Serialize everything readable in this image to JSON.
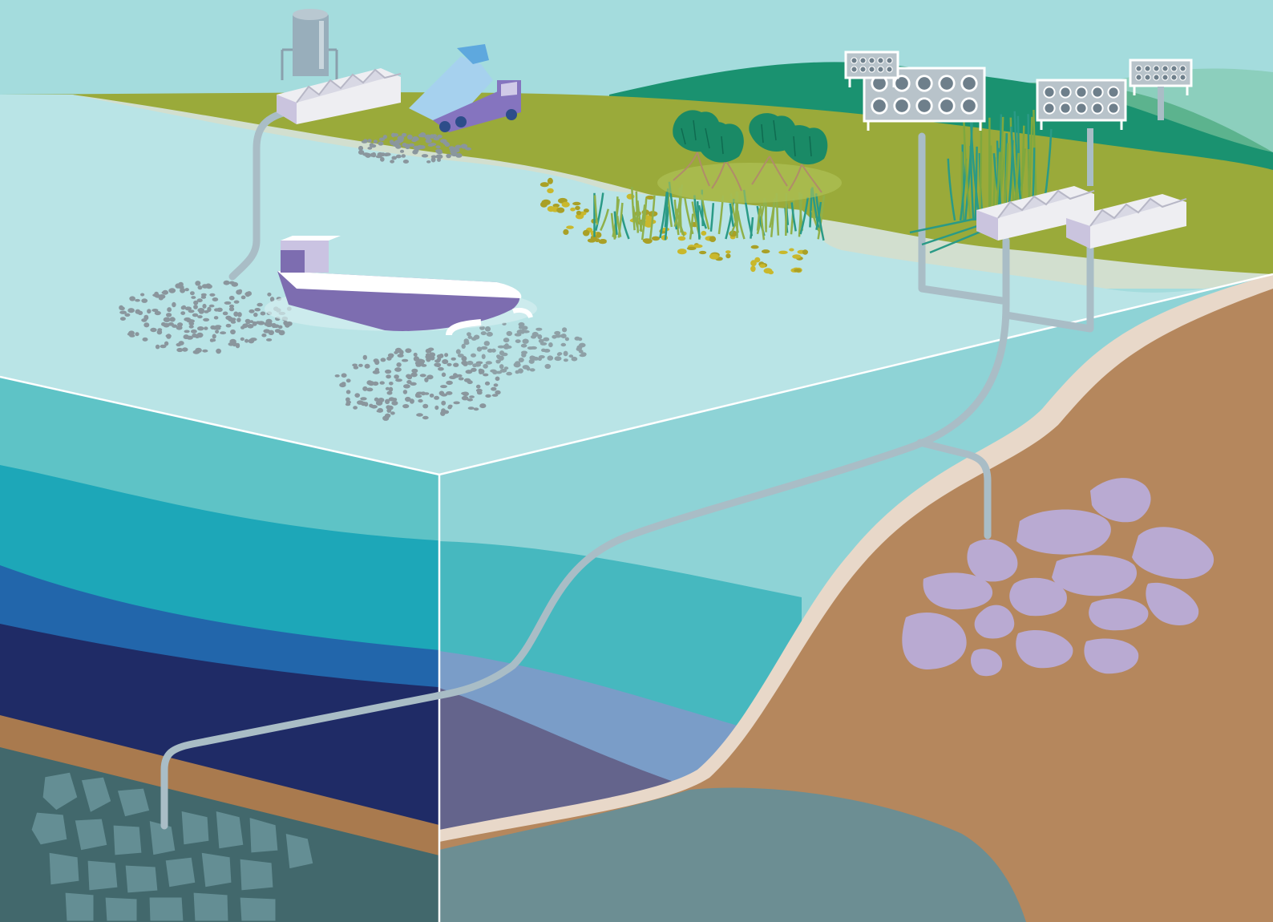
{
  "scene": {
    "colors": {
      "sky": "#a4dcdd",
      "grass": "#9aaa3a",
      "hill_dark": "#1a9270",
      "hill_mid": "#5cb38e",
      "shore": "#d2dfcf",
      "water_surface": "#b9e4e6",
      "ocean_light": "#8ed3d6",
      "ocean_teal": "#5ec3c6",
      "ocean_cyan": "#1da7b8",
      "ocean_blue": "#2266ab",
      "ocean_navy": "#1f2b66",
      "sediment": "#a97a4e",
      "bedrock": "#42686c",
      "seabed": "#b5875d",
      "seabed_edge": "#e8d8c9",
      "basin": "#6c8e93",
      "basalt": "#b9aad2",
      "ship_hull": "#7d6db0",
      "pipe": "#a9bdc6",
      "rock_dots": "#8a969d",
      "kelp": "#c9b82c",
      "seagrass": "#2a9a86",
      "mangrove": "#1a8a66"
    },
    "icons": [
      "factory-icon",
      "storage-silo-icon",
      "dump-truck-icon",
      "ship-icon",
      "direct-air-capture-fan-icon",
      "mangrove-tree-icon",
      "seagrass-icon",
      "kelp-icon",
      "rock-pile-icon",
      "pipeline-icon",
      "basalt-formation-icon",
      "sediment-rock-icon"
    ]
  }
}
